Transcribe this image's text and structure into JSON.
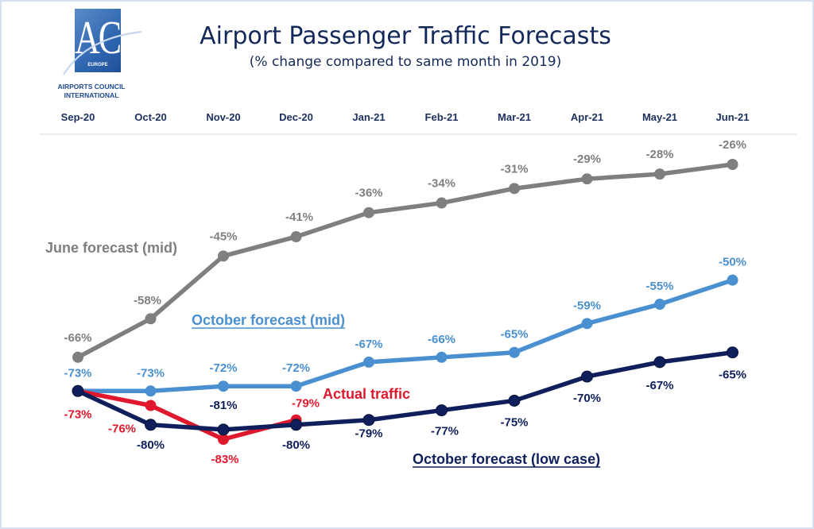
{
  "logo": {
    "mark": "ACI",
    "region": "EUROPE",
    "line1": "AIRPORTS COUNCIL",
    "line2": "INTERNATIONAL"
  },
  "chart_data": {
    "type": "line",
    "title": "Airport Passenger Traffic Forecasts",
    "subtitle": "(% change compared to same month in 2019)",
    "xlabel": "",
    "ylabel": "",
    "ylim": [
      -85,
      -24
    ],
    "grid": false,
    "x_axis_position": "top",
    "categories": [
      "Sep-20",
      "Oct-20",
      "Nov-20",
      "Dec-20",
      "Jan-21",
      "Feb-21",
      "Mar-21",
      "Apr-21",
      "May-21",
      "Jun-21"
    ],
    "series": [
      {
        "key": "june_mid",
        "name": "June forecast (mid)",
        "color": "#7f7f7f",
        "values": [
          -66,
          -58,
          -45,
          -41,
          -36,
          -34,
          -31,
          -29,
          -28,
          -26
        ],
        "labels": [
          "-66%",
          "-58%",
          "-45%",
          "-41%",
          "-36%",
          "-34%",
          "-31%",
          "-29%",
          "-28%",
          "-26%"
        ],
        "legend_underlined": false
      },
      {
        "key": "october_mid",
        "name": "October  forecast (mid)",
        "color": "#4a90d0",
        "values": [
          -73,
          -73,
          -72,
          -72,
          -67,
          -66,
          -65,
          -59,
          -55,
          -50
        ],
        "labels": [
          "-73%",
          "-73%",
          "-72%",
          "-72%",
          "-67%",
          "-66%",
          "-65%",
          "-59%",
          "-55%",
          "-50%"
        ],
        "legend_underlined": true
      },
      {
        "key": "october_low",
        "name": "October forecast (low case)",
        "color": "#0f1f5c",
        "values": [
          -73,
          -80,
          -81,
          -80,
          -79,
          -77,
          -75,
          -70,
          -67,
          -65
        ],
        "labels": [
          "",
          "-80%",
          "-81%",
          "-80%",
          "-79%",
          "-77%",
          "-75%",
          "-70%",
          "-67%",
          "-65%"
        ],
        "legend_underlined": true
      },
      {
        "key": "actual",
        "name": "Actual traffic",
        "color": "#e0182d",
        "values": [
          -73,
          -76,
          -83,
          -79,
          null,
          null,
          null,
          null,
          null,
          null
        ],
        "labels": [
          "-73%",
          "-76%",
          "-83%",
          "-79%",
          "",
          "",
          "",
          "",
          "",
          ""
        ],
        "legend_underlined": false
      }
    ]
  }
}
